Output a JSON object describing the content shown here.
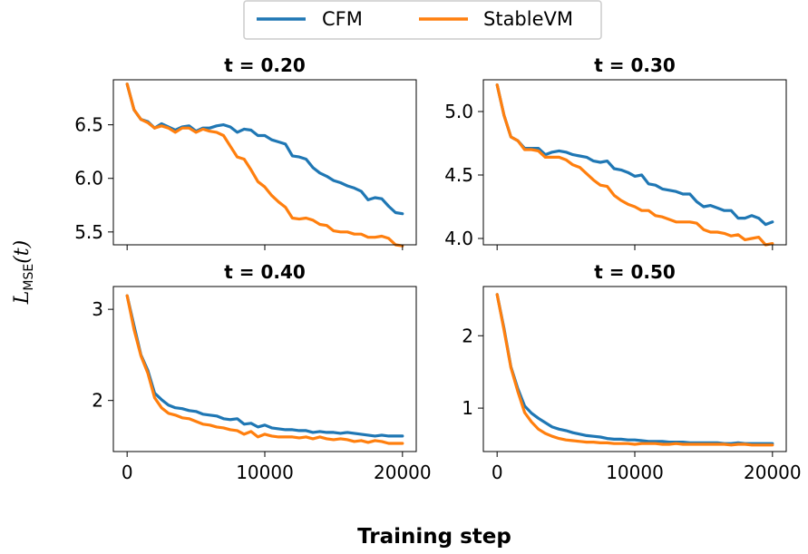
{
  "chart_data": {
    "type": "line",
    "xlabel": "Training step",
    "ylabel": "L",
    "ylabel_sub": "MSE",
    "ylabel_arg": "(t)",
    "legend": {
      "placement": "top-center",
      "entries": [
        {
          "name": "CFM",
          "color": "#1f77b4"
        },
        {
          "name": "StableVM",
          "color": "#ff7f0e"
        }
      ]
    },
    "x": [
      0,
      500,
      1000,
      1500,
      2000,
      2500,
      3000,
      3500,
      4000,
      4500,
      5000,
      5500,
      6000,
      6500,
      7000,
      7500,
      8000,
      8500,
      9000,
      9500,
      10000,
      10500,
      11000,
      11500,
      12000,
      12500,
      13000,
      13500,
      14000,
      14500,
      15000,
      15500,
      16000,
      16500,
      17000,
      17500,
      18000,
      18500,
      19000,
      19500,
      20000
    ],
    "panels": [
      {
        "title": "t = 0.20",
        "xlim": [
          -1000,
          21000
        ],
        "ylim": [
          5.38,
          6.92
        ],
        "xticks": [
          0,
          10000,
          20000
        ],
        "xtick_labels_shown": false,
        "yticks": [
          5.5,
          6.0,
          6.5
        ],
        "ytick_labels": [
          "5.5",
          "6.0",
          "6.5"
        ],
        "series": [
          {
            "name": "CFM",
            "values": [
              6.88,
              6.64,
              6.55,
              6.53,
              6.47,
              6.51,
              6.48,
              6.45,
              6.48,
              6.49,
              6.44,
              6.47,
              6.47,
              6.49,
              6.5,
              6.48,
              6.43,
              6.46,
              6.45,
              6.4,
              6.4,
              6.36,
              6.34,
              6.32,
              6.21,
              6.2,
              6.18,
              6.1,
              6.05,
              6.02,
              5.98,
              5.96,
              5.93,
              5.91,
              5.88,
              5.8,
              5.82,
              5.81,
              5.74,
              5.68,
              5.67
            ]
          },
          {
            "name": "StableVM",
            "values": [
              6.88,
              6.64,
              6.55,
              6.52,
              6.47,
              6.49,
              6.47,
              6.43,
              6.47,
              6.47,
              6.43,
              6.46,
              6.44,
              6.43,
              6.4,
              6.3,
              6.2,
              6.18,
              6.08,
              5.97,
              5.92,
              5.84,
              5.78,
              5.73,
              5.63,
              5.62,
              5.63,
              5.61,
              5.57,
              5.56,
              5.51,
              5.5,
              5.5,
              5.48,
              5.48,
              5.45,
              5.45,
              5.46,
              5.44,
              5.38,
              5.37
            ]
          }
        ]
      },
      {
        "title": "t = 0.30",
        "xlim": [
          -1000,
          21000
        ],
        "ylim": [
          3.95,
          5.25
        ],
        "xticks": [
          0,
          10000,
          20000
        ],
        "xtick_labels_shown": false,
        "yticks": [
          4.0,
          4.5,
          5.0
        ],
        "ytick_labels": [
          "4.0",
          "4.5",
          "5.0"
        ],
        "series": [
          {
            "name": "CFM",
            "values": [
              5.21,
              4.97,
              4.8,
              4.77,
              4.71,
              4.71,
              4.71,
              4.66,
              4.68,
              4.69,
              4.68,
              4.66,
              4.65,
              4.64,
              4.61,
              4.6,
              4.61,
              4.55,
              4.54,
              4.52,
              4.49,
              4.5,
              4.43,
              4.42,
              4.39,
              4.38,
              4.37,
              4.35,
              4.35,
              4.29,
              4.25,
              4.26,
              4.24,
              4.22,
              4.22,
              4.16,
              4.16,
              4.18,
              4.16,
              4.11,
              4.13
            ]
          },
          {
            "name": "StableVM",
            "values": [
              5.21,
              4.97,
              4.8,
              4.77,
              4.7,
              4.7,
              4.69,
              4.64,
              4.64,
              4.64,
              4.62,
              4.58,
              4.56,
              4.51,
              4.46,
              4.42,
              4.41,
              4.34,
              4.3,
              4.27,
              4.25,
              4.22,
              4.22,
              4.18,
              4.17,
              4.15,
              4.13,
              4.13,
              4.13,
              4.12,
              4.07,
              4.05,
              4.05,
              4.04,
              4.02,
              4.03,
              3.99,
              4.0,
              4.01,
              3.95,
              3.96
            ]
          }
        ]
      },
      {
        "title": "t = 0.40",
        "xlim": [
          -1000,
          21000
        ],
        "ylim": [
          1.44,
          3.25
        ],
        "xticks": [
          0,
          10000,
          20000
        ],
        "xtick_labels_shown": true,
        "xtick_labels": [
          "0",
          "10000",
          "20000"
        ],
        "yticks": [
          2,
          3
        ],
        "ytick_labels": [
          "2",
          "3"
        ],
        "series": [
          {
            "name": "CFM",
            "values": [
              3.15,
              2.82,
              2.5,
              2.33,
              2.08,
              2.01,
              1.95,
              1.92,
              1.91,
              1.89,
              1.88,
              1.85,
              1.84,
              1.83,
              1.8,
              1.79,
              1.8,
              1.74,
              1.75,
              1.71,
              1.73,
              1.7,
              1.69,
              1.68,
              1.68,
              1.67,
              1.67,
              1.65,
              1.66,
              1.65,
              1.65,
              1.64,
              1.65,
              1.64,
              1.63,
              1.62,
              1.61,
              1.62,
              1.61,
              1.61,
              1.61
            ]
          },
          {
            "name": "StableVM",
            "values": [
              3.15,
              2.78,
              2.49,
              2.3,
              2.03,
              1.92,
              1.86,
              1.84,
              1.81,
              1.8,
              1.77,
              1.74,
              1.73,
              1.71,
              1.7,
              1.68,
              1.67,
              1.63,
              1.66,
              1.6,
              1.63,
              1.61,
              1.6,
              1.6,
              1.6,
              1.59,
              1.6,
              1.58,
              1.6,
              1.58,
              1.57,
              1.58,
              1.57,
              1.55,
              1.56,
              1.54,
              1.56,
              1.55,
              1.53,
              1.53,
              1.53
            ]
          }
        ]
      },
      {
        "title": "t = 0.50",
        "xlim": [
          -1000,
          21000
        ],
        "ylim": [
          0.4,
          2.68
        ],
        "xticks": [
          0,
          10000,
          20000
        ],
        "xtick_labels_shown": true,
        "xtick_labels": [
          "0",
          "10000",
          "20000"
        ],
        "yticks": [
          1,
          2
        ],
        "ytick_labels": [
          "1",
          "2"
        ],
        "series": [
          {
            "name": "CFM",
            "values": [
              2.57,
              2.1,
              1.57,
              1.27,
              1.03,
              0.93,
              0.86,
              0.8,
              0.74,
              0.71,
              0.69,
              0.66,
              0.64,
              0.62,
              0.61,
              0.6,
              0.58,
              0.57,
              0.57,
              0.56,
              0.56,
              0.55,
              0.54,
              0.54,
              0.54,
              0.53,
              0.53,
              0.53,
              0.52,
              0.52,
              0.52,
              0.52,
              0.52,
              0.51,
              0.51,
              0.52,
              0.51,
              0.51,
              0.51,
              0.51,
              0.51
            ]
          },
          {
            "name": "StableVM",
            "values": [
              2.57,
              2.08,
              1.56,
              1.23,
              0.94,
              0.81,
              0.71,
              0.65,
              0.61,
              0.58,
              0.56,
              0.55,
              0.54,
              0.53,
              0.53,
              0.52,
              0.52,
              0.51,
              0.51,
              0.51,
              0.5,
              0.51,
              0.51,
              0.51,
              0.5,
              0.5,
              0.51,
              0.5,
              0.5,
              0.5,
              0.5,
              0.5,
              0.5,
              0.5,
              0.49,
              0.5,
              0.5,
              0.49,
              0.49,
              0.49,
              0.49
            ]
          }
        ]
      }
    ]
  }
}
